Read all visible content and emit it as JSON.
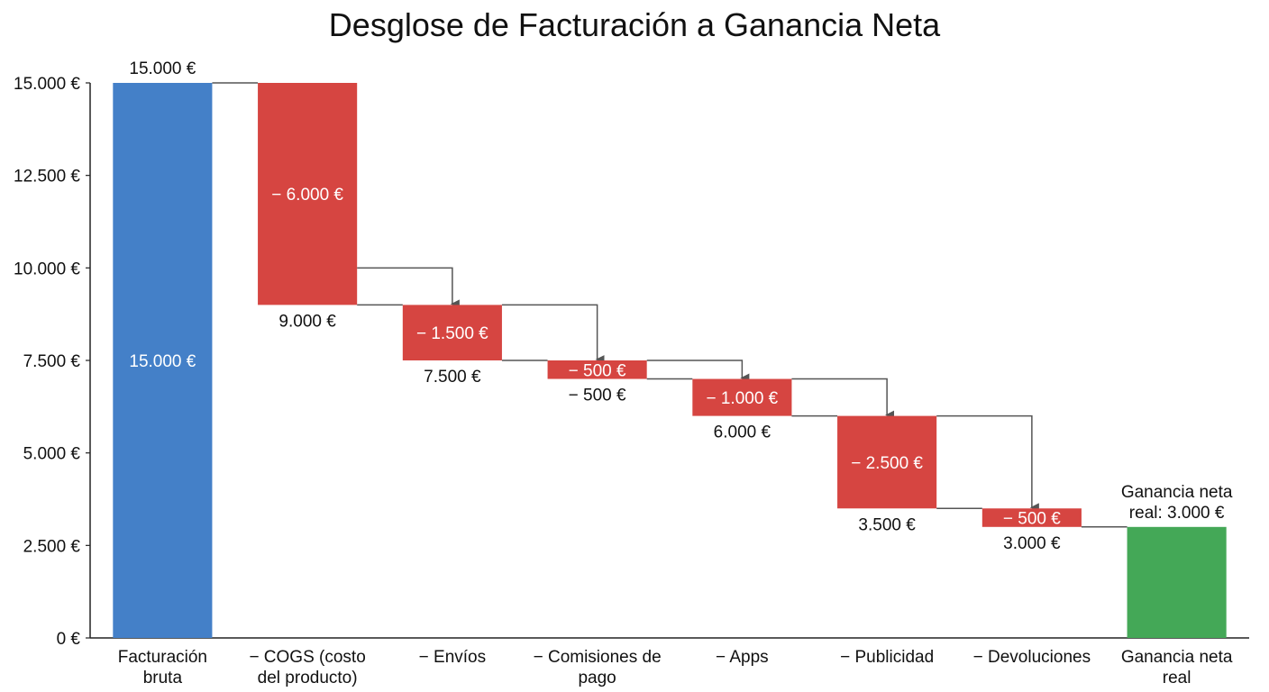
{
  "chart_data": {
    "type": "bar",
    "title": "Desglose de Facturación a Ganancia Neta",
    "xlabel": "",
    "ylabel": "",
    "ylim": [
      0,
      15000
    ],
    "yticks": [
      "0 €",
      "2.500 €",
      "5.000 €",
      "7.500 €",
      "10.000 €",
      "12.500 €",
      "15.000 €"
    ],
    "ytick_values": [
      0,
      2500,
      5000,
      7500,
      10000,
      12500,
      15000
    ],
    "colors": {
      "total": "#4480c8",
      "decrease": "#d64541",
      "result": "#44a857",
      "connector": "#555555"
    },
    "bars": [
      {
        "category": [
          "Facturación",
          "bruta"
        ],
        "kind": "total",
        "start": 0,
        "end": 15000,
        "inside_label": "15.000 €",
        "outside_label": [
          "15.000 €"
        ],
        "outside_pos": "above"
      },
      {
        "category": [
          "− COGS (costo",
          "del producto)"
        ],
        "kind": "decrease",
        "start": 15000,
        "end": 9000,
        "inside_label": "− 6.000 €",
        "outside_label": [
          "9.000 €"
        ],
        "outside_pos": "below"
      },
      {
        "category": [
          "− Envíos"
        ],
        "kind": "decrease",
        "start": 9000,
        "end": 7500,
        "inside_label": "− 1.500 €",
        "outside_label": [
          "7.500 €"
        ],
        "outside_pos": "below"
      },
      {
        "category": [
          "− Comisiones de",
          "pago"
        ],
        "kind": "decrease",
        "start": 7500,
        "end": 7000,
        "inside_label": "− 500 €",
        "outside_label": [
          "− 500 €"
        ],
        "outside_pos": "below"
      },
      {
        "category": [
          "− Apps"
        ],
        "kind": "decrease",
        "start": 7000,
        "end": 6000,
        "inside_label": "− 1.000 €",
        "outside_label": [
          "6.000 €"
        ],
        "outside_pos": "below"
      },
      {
        "category": [
          "− Publicidad"
        ],
        "kind": "decrease",
        "start": 6000,
        "end": 3500,
        "inside_label": "− 2.500 €",
        "outside_label": [
          "3.500 €"
        ],
        "outside_pos": "below"
      },
      {
        "category": [
          "− Devoluciones"
        ],
        "kind": "decrease",
        "start": 3500,
        "end": 3000,
        "inside_label": "− 500 €",
        "outside_label": [
          "3.000 €"
        ],
        "outside_pos": "below"
      },
      {
        "category": [
          "Ganancia neta",
          "real"
        ],
        "kind": "result",
        "start": 0,
        "end": 3000,
        "inside_label": "",
        "outside_label": [
          "Ganancia neta",
          "real: 3.000 €"
        ],
        "outside_pos": "above"
      }
    ]
  }
}
